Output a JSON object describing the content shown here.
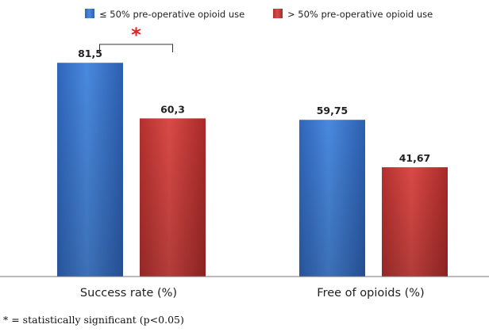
{
  "chart_data": {
    "type": "bar",
    "categories": [
      "Success rate (%)",
      "Free of opioids (%)"
    ],
    "series": [
      {
        "name": "≤ 50% pre-operative opioid use",
        "values": [
          81.5,
          59.75
        ],
        "labels": [
          "81,5",
          "59,75"
        ],
        "color": "#3a78d0"
      },
      {
        "name": "> 50% pre-operative opioid use",
        "values": [
          60.3,
          41.67
        ],
        "labels": [
          "60,3",
          "41,67"
        ],
        "color": "#c83a38"
      }
    ],
    "title": "",
    "xlabel": "",
    "ylabel": "",
    "ylim": [
      0,
      100
    ],
    "grid": false,
    "legend_position": "top",
    "annotation": {
      "symbol": "*",
      "category_index": 0,
      "color": "#e0201e"
    }
  },
  "footnote": "* = statistically significant (p<0.05)"
}
